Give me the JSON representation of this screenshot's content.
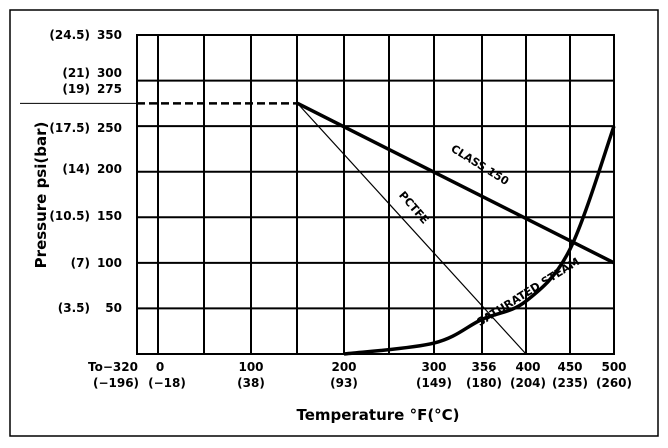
{
  "chart_data": {
    "type": "line",
    "xlabel": "Temperature °F(°C)",
    "ylabel": "Pressure  psi(bar)",
    "xlim": [
      -320,
      500
    ],
    "ylim": [
      0,
      350
    ],
    "grid": true,
    "x_ticks": [
      {
        "value": -320,
        "f": "To−320",
        "c": "(−196)"
      },
      {
        "value": 0,
        "f": "0",
        "c": "(−18)"
      },
      {
        "value": 100,
        "f": "100",
        "c": "(38)"
      },
      {
        "value": 200,
        "f": "200",
        "c": "(93)"
      },
      {
        "value": 300,
        "f": "300",
        "c": "(149)"
      },
      {
        "value": 356,
        "f": "356",
        "c": "(180)"
      },
      {
        "value": 400,
        "f": "400",
        "c": "(204)"
      },
      {
        "value": 450,
        "f": "450",
        "c": "(235)"
      },
      {
        "value": 500,
        "f": "500",
        "c": "(260)"
      }
    ],
    "y_ticks": [
      {
        "value": 350,
        "psi": "350",
        "bar": "(24.5)"
      },
      {
        "value": 300,
        "psi": "300",
        "bar": "(21)"
      },
      {
        "value": 275,
        "psi": "275",
        "bar": "(19)"
      },
      {
        "value": 250,
        "psi": "250",
        "bar": "(17.5)"
      },
      {
        "value": 200,
        "psi": "200",
        "bar": "(14)"
      },
      {
        "value": 150,
        "psi": "150",
        "bar": "(10.5)"
      },
      {
        "value": 100,
        "psi": "100",
        "bar": "(7)"
      },
      {
        "value": 50,
        "psi": "50",
        "bar": "(3.5)"
      }
    ],
    "series": [
      {
        "name": "CLASS 150",
        "style": "thick",
        "x": [
          -320,
          150,
          500
        ],
        "y": [
          275,
          275,
          100
        ]
      },
      {
        "name": "PCTFE",
        "style": "thin",
        "x": [
          150,
          400
        ],
        "y": [
          275,
          0
        ]
      },
      {
        "name": "SATURATED STEAM",
        "style": "thick",
        "x": [
          200,
          300,
          356,
          400,
          450,
          500
        ],
        "y": [
          0,
          12,
          38,
          58,
          115,
          250
        ]
      }
    ]
  }
}
